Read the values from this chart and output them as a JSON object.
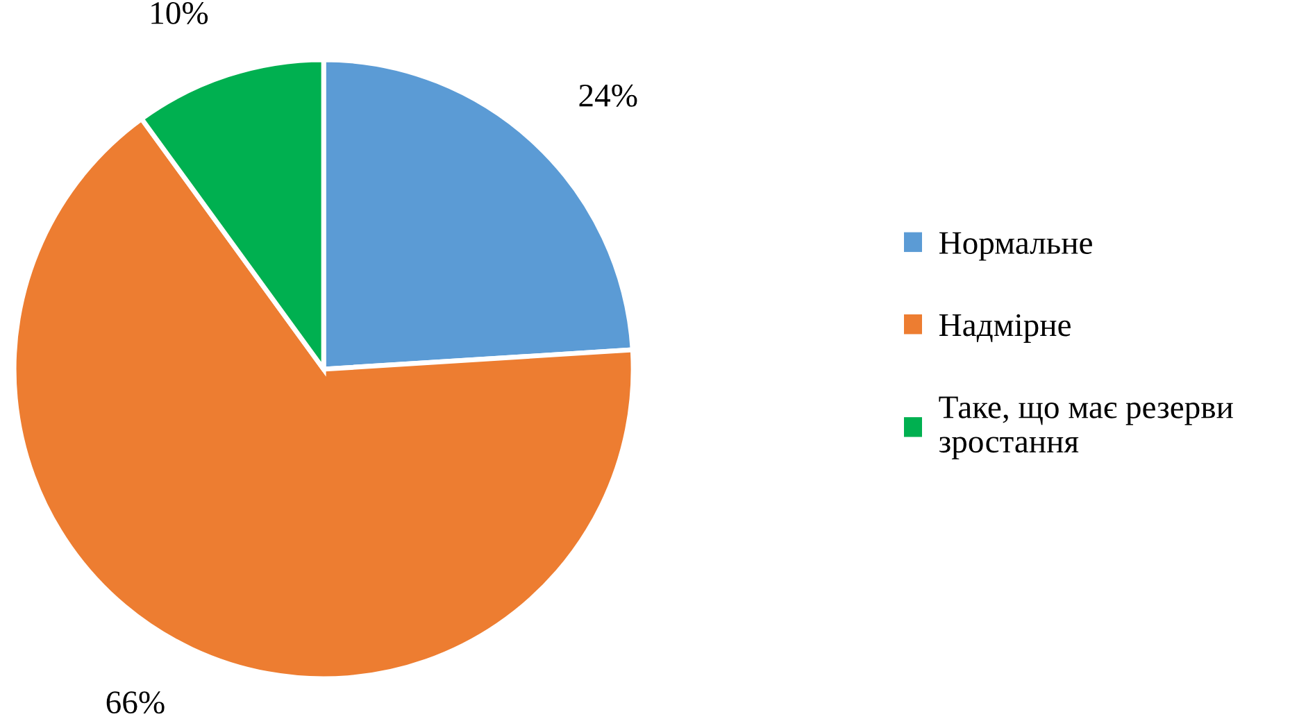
{
  "chart_data": {
    "type": "pie",
    "categories": [
      "Нормальне",
      "Надмірне",
      "Таке, що має резерви зростання"
    ],
    "values": [
      24,
      66,
      10
    ],
    "colors": [
      "#5b9bd5",
      "#ed7d31",
      "#00b050"
    ],
    "value_labels": [
      "24%",
      "66%",
      "10%"
    ],
    "legend": "right"
  }
}
